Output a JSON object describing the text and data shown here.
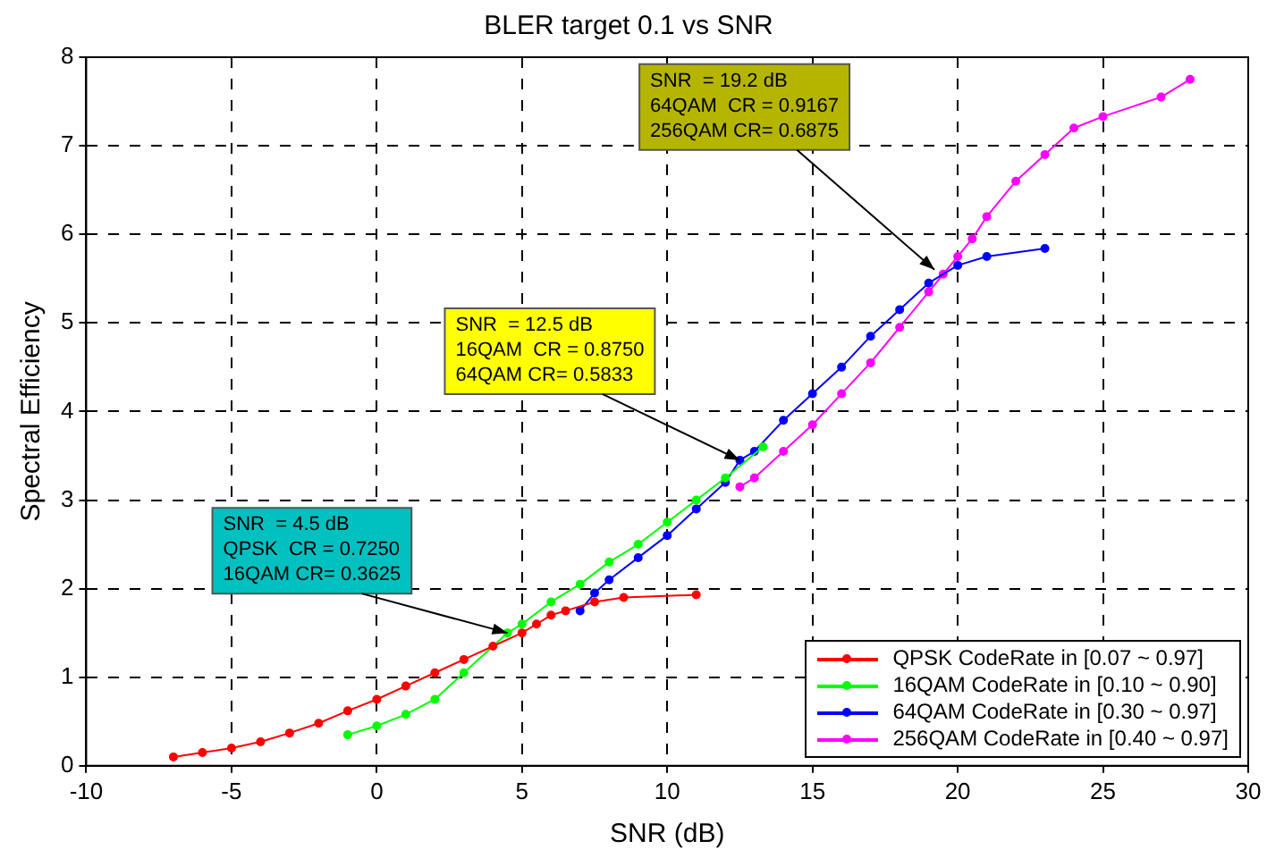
{
  "chart_data": {
    "type": "line",
    "title": "BLER target 0.1 vs SNR",
    "xlabel": "SNR (dB)",
    "ylabel": "Spectral Efficiency",
    "xlim": [
      -10,
      30
    ],
    "xticks": [
      -10,
      -5,
      0,
      5,
      10,
      15,
      20,
      25,
      30
    ],
    "ylim": [
      0,
      8
    ],
    "yticks": [
      0,
      1,
      2,
      3,
      4,
      5,
      6,
      7,
      8
    ],
    "grid": true,
    "legend": "bottom right",
    "marker": "circle",
    "line_style": "solid",
    "series": [
      {
        "name": "QPSK CodeRate in [0.07 ~ 0.97]",
        "color": "#ff0000",
        "x": [
          -7,
          -6,
          -5,
          -4,
          -3,
          -2,
          -1,
          0,
          1,
          2,
          3,
          4,
          5,
          5.5,
          6,
          6.5,
          7.5,
          8.5,
          11
        ],
        "values": [
          0.1,
          0.15,
          0.2,
          0.27,
          0.37,
          0.48,
          0.62,
          0.75,
          0.9,
          1.05,
          1.2,
          1.35,
          1.5,
          1.6,
          1.7,
          1.75,
          1.85,
          1.9,
          1.93
        ]
      },
      {
        "name": "16QAM CodeRate in [0.10 ~ 0.90]",
        "color": "#00ff00",
        "x": [
          -1,
          0,
          1,
          2,
          3,
          4.5,
          5,
          6,
          7,
          8,
          9,
          10,
          11,
          12,
          13.3
        ],
        "values": [
          0.35,
          0.45,
          0.58,
          0.75,
          1.05,
          1.5,
          1.6,
          1.85,
          2.05,
          2.3,
          2.5,
          2.75,
          3.0,
          3.25,
          3.6
        ]
      },
      {
        "name": "64QAM CodeRate in [0.30 ~ 0.97]",
        "color": "#0000ff",
        "x": [
          7,
          7.5,
          8,
          9,
          10,
          11,
          12,
          12.5,
          13,
          14,
          15,
          16,
          17,
          18,
          19,
          20,
          21,
          23
        ],
        "values": [
          1.75,
          1.95,
          2.1,
          2.35,
          2.6,
          2.9,
          3.2,
          3.45,
          3.55,
          3.9,
          4.2,
          4.5,
          4.85,
          5.15,
          5.45,
          5.65,
          5.75,
          5.84
        ]
      },
      {
        "name": "256QAM CodeRate in [0.40 ~ 0.97]",
        "color": "#ff00ff",
        "x": [
          12.5,
          13,
          14,
          15,
          16,
          17,
          18,
          19,
          19.5,
          20,
          20.5,
          21,
          22,
          23,
          24,
          25,
          27,
          28
        ],
        "values": [
          3.15,
          3.25,
          3.55,
          3.85,
          4.2,
          4.55,
          4.95,
          5.35,
          5.55,
          5.75,
          5.95,
          6.2,
          6.6,
          6.9,
          7.2,
          7.33,
          7.55,
          7.75
        ]
      }
    ],
    "annotations": [
      {
        "text": "SNR  = 4.5 dB\nQPSK  CR = 0.7250\n16QAM CR= 0.3625",
        "x": 4.5,
        "y": 1.5
      },
      {
        "text": "SNR  = 12.5 dB\n16QAM  CR = 0.8750\n64QAM CR= 0.5833",
        "x": 12.5,
        "y": 3.45
      },
      {
        "text": "SNR  = 19.2 dB\n64QAM  CR = 0.9167\n256QAM CR= 0.6875",
        "x": 19.2,
        "y": 5.6
      }
    ]
  }
}
